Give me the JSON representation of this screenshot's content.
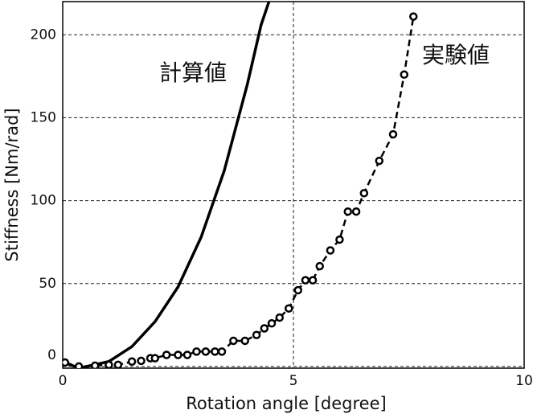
{
  "chart_data": {
    "type": "line",
    "xlabel": "Rotation angle [degree]",
    "ylabel": "Stiffness [Nm/rad]",
    "xlim": [
      0,
      10
    ],
    "ylim": [
      -1,
      220
    ],
    "xticks": [
      0,
      5,
      10
    ],
    "yticks": [
      0,
      50,
      100,
      150,
      200
    ],
    "grid": true,
    "annotations": [
      "計算値",
      "実験値"
    ],
    "series": [
      {
        "color": "#000000",
        "style": "solid",
        "x": [
          0,
          0.35,
          1,
          1.5,
          2,
          2.5,
          3,
          3.5,
          4,
          4.3,
          4.47
        ],
        "values": [
          3,
          -1,
          3,
          12,
          27,
          48,
          78,
          118,
          170,
          206,
          220
        ]
      },
      {
        "color": "#000000",
        "style": "dashed",
        "marker": "circle",
        "x": [
          0.05,
          0.35,
          0.7,
          1.0,
          1.2,
          1.5,
          1.7,
          1.9,
          2.0,
          2.25,
          2.5,
          2.7,
          2.9,
          3.1,
          3.3,
          3.45,
          3.7,
          3.95,
          4.2,
          4.37,
          4.53,
          4.7,
          4.9,
          5.1,
          5.26,
          5.42,
          5.57,
          5.8,
          6.0,
          6.18,
          6.36,
          6.53,
          6.86,
          7.16,
          7.4,
          7.6
        ],
        "values": [
          2.4,
          0,
          0.5,
          1,
          1,
          3,
          3.4,
          5,
          5,
          7,
          7,
          7,
          9,
          9,
          9,
          9,
          15.5,
          15.5,
          19,
          23,
          26,
          29.5,
          35,
          46,
          52,
          52,
          60.5,
          70,
          76.5,
          93.4,
          93.4,
          104.5,
          124,
          140,
          176,
          211
        ]
      }
    ]
  }
}
